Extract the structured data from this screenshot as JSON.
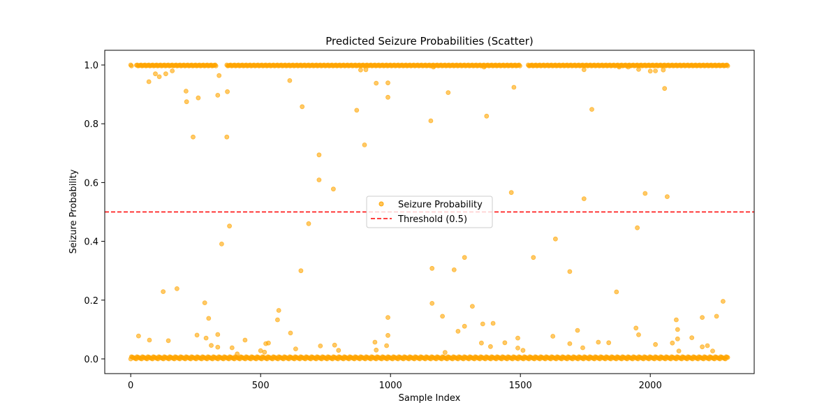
{
  "chart_data": {
    "type": "scatter",
    "title": "Predicted Seizure Probabilities (Scatter)",
    "xlabel": "Sample Index",
    "ylabel": "Seizure Probability",
    "xlim": [
      -100,
      2400
    ],
    "ylim": [
      -0.05,
      1.05
    ],
    "xticks": [
      0,
      500,
      1000,
      1500,
      2000
    ],
    "yticks": [
      0.0,
      0.2,
      0.4,
      0.6,
      0.8,
      1.0
    ],
    "xtick_labels": [
      "0",
      "500",
      "1000",
      "1500",
      "2000"
    ],
    "ytick_labels": [
      "0.0",
      "0.2",
      "0.4",
      "0.6",
      "0.8",
      "1.0"
    ],
    "grid": false,
    "legend_placement": "center",
    "series": [
      {
        "name": "Seizure Probability",
        "color": "#FFA500",
        "kind": "scatter",
        "x_range": [
          0,
          2300
        ],
        "baseline_rows": [
          {
            "y": 1.0,
            "x_ranges": [
              [
                0,
                5
              ],
              [
                22,
                330
              ],
              [
                370,
                1500
              ],
              [
                1530,
                2300
              ]
            ]
          },
          {
            "y": 0.0,
            "x_ranges": [
              [
                0,
                2300
              ]
            ]
          }
        ],
        "points": [
          [
            70,
            0.943
          ],
          [
            95,
            0.97
          ],
          [
            110,
            0.96
          ],
          [
            135,
            0.97
          ],
          [
            160,
            0.98
          ],
          [
            213,
            0.911
          ],
          [
            215,
            0.875
          ],
          [
            260,
            0.888
          ],
          [
            240,
            0.755
          ],
          [
            340,
            0.964
          ],
          [
            335,
            0.897
          ],
          [
            372,
            0.909
          ],
          [
            370,
            0.755
          ],
          [
            380,
            0.452
          ],
          [
            350,
            0.391
          ],
          [
            125,
            0.229
          ],
          [
            178,
            0.239
          ],
          [
            285,
            0.191
          ],
          [
            300,
            0.138
          ],
          [
            255,
            0.081
          ],
          [
            30,
            0.078
          ],
          [
            72,
            0.064
          ],
          [
            145,
            0.062
          ],
          [
            290,
            0.071
          ],
          [
            310,
            0.046
          ],
          [
            335,
            0.083
          ],
          [
            335,
            0.04
          ],
          [
            390,
            0.038
          ],
          [
            440,
            0.064
          ],
          [
            410,
            0.017
          ],
          [
            500,
            0.028
          ],
          [
            520,
            0.052
          ],
          [
            530,
            0.054
          ],
          [
            515,
            0.023
          ],
          [
            570,
            0.165
          ],
          [
            565,
            0.133
          ],
          [
            615,
            0.088
          ],
          [
            635,
            0.034
          ],
          [
            612,
            0.947
          ],
          [
            660,
            0.858
          ],
          [
            685,
            0.46
          ],
          [
            655,
            0.3
          ],
          [
            725,
            0.694
          ],
          [
            725,
            0.609
          ],
          [
            780,
            0.578
          ],
          [
            730,
            0.044
          ],
          [
            785,
            0.047
          ],
          [
            800,
            0.029
          ],
          [
            870,
            0.846
          ],
          [
            885,
            0.983
          ],
          [
            900,
            0.728
          ],
          [
            945,
            0.938
          ],
          [
            990,
            0.939
          ],
          [
            990,
            0.89
          ],
          [
            940,
            0.057
          ],
          [
            945,
            0.03
          ],
          [
            990,
            0.141
          ],
          [
            990,
            0.08
          ],
          [
            985,
            0.045
          ],
          [
            1155,
            0.81
          ],
          [
            1222,
            0.906
          ],
          [
            1160,
            0.308
          ],
          [
            1160,
            0.189
          ],
          [
            1200,
            0.145
          ],
          [
            1245,
            0.303
          ],
          [
            1285,
            0.345
          ],
          [
            1315,
            0.179
          ],
          [
            1285,
            0.111
          ],
          [
            1355,
            0.119
          ],
          [
            1395,
            0.121
          ],
          [
            1260,
            0.094
          ],
          [
            1350,
            0.054
          ],
          [
            1385,
            0.042
          ],
          [
            1210,
            0.022
          ],
          [
            1370,
            0.826
          ],
          [
            1475,
            0.924
          ],
          [
            1465,
            0.566
          ],
          [
            1550,
            0.345
          ],
          [
            1635,
            0.408
          ],
          [
            1690,
            0.297
          ],
          [
            1745,
            0.984
          ],
          [
            1745,
            0.545
          ],
          [
            1775,
            0.849
          ],
          [
            1720,
            0.097
          ],
          [
            1625,
            0.077
          ],
          [
            1690,
            0.052
          ],
          [
            1740,
            0.038
          ],
          [
            1440,
            0.055
          ],
          [
            1490,
            0.071
          ],
          [
            1490,
            0.037
          ],
          [
            1510,
            0.029
          ],
          [
            1800,
            0.057
          ],
          [
            1840,
            0.055
          ],
          [
            1870,
            0.228
          ],
          [
            1950,
            0.446
          ],
          [
            1945,
            0.105
          ],
          [
            1955,
            0.082
          ],
          [
            1980,
            0.563
          ],
          [
            2065,
            0.552
          ],
          [
            2055,
            0.92
          ],
          [
            2050,
            0.983
          ],
          [
            2000,
            0.979
          ],
          [
            2020,
            0.98
          ],
          [
            2020,
            0.049
          ],
          [
            2100,
            0.133
          ],
          [
            2105,
            0.1
          ],
          [
            2085,
            0.054
          ],
          [
            2105,
            0.068
          ],
          [
            2110,
            0.027
          ],
          [
            2160,
            0.072
          ],
          [
            2200,
            0.141
          ],
          [
            2200,
            0.041
          ],
          [
            2220,
            0.045
          ],
          [
            2255,
            0.145
          ],
          [
            2280,
            0.196
          ],
          [
            2240,
            0.027
          ],
          [
            1165,
            0.993
          ],
          [
            1360,
            0.993
          ],
          [
            1880,
            0.993
          ],
          [
            1915,
            0.993
          ],
          [
            1955,
            0.985
          ],
          [
            905,
            0.984
          ]
        ]
      },
      {
        "name": "Threshold (0.5)",
        "color": "#FF0000",
        "kind": "hline",
        "style": "dashed",
        "y": 0.5
      }
    ]
  }
}
